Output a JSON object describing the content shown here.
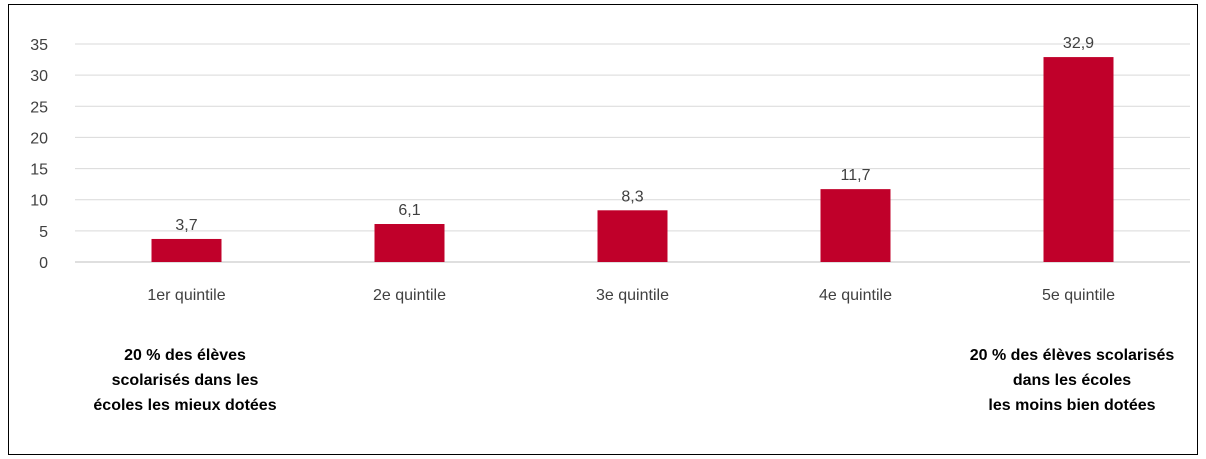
{
  "chart_data": {
    "type": "bar",
    "categories": [
      "1er quintile",
      "2e quintile",
      "3e quintile",
      "4e quintile",
      "5e quintile"
    ],
    "values": [
      3.7,
      6.1,
      8.3,
      11.7,
      32.9
    ],
    "data_labels": [
      "3,7",
      "6,1",
      "8,3",
      "11,7",
      "32,9"
    ],
    "yticks": [
      0,
      5,
      10,
      15,
      20,
      25,
      30,
      35
    ],
    "ytick_labels": [
      "0",
      "5",
      "10",
      "15",
      "20",
      "25",
      "30",
      "35"
    ],
    "ylim": [
      0,
      35
    ],
    "grid": true,
    "bar_color": "#C0002A",
    "title": "",
    "xlabel": "",
    "ylabel": ""
  },
  "notes": {
    "left": [
      "20 % des élèves",
      "scolarisés dans les",
      "écoles les mieux dotées"
    ],
    "right": [
      "20 % des élèves scolarisés",
      "dans les écoles",
      "les moins bien dotées"
    ]
  }
}
